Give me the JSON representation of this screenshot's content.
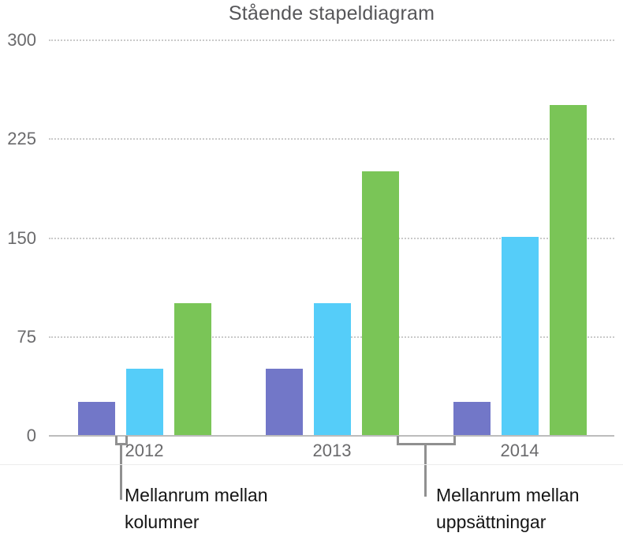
{
  "chart": {
    "title": "Stående stapeldiagram"
  },
  "chart_data": {
    "type": "bar",
    "title": "Stående stapeldiagram",
    "categories": [
      "2012",
      "2013",
      "2014"
    ],
    "series": [
      {
        "color": "#7277C8",
        "values": [
          25,
          50,
          25
        ]
      },
      {
        "color": "#55CDF9",
        "values": [
          50,
          100,
          150
        ]
      },
      {
        "color": "#7AC557",
        "values": [
          100,
          200,
          250
        ]
      }
    ],
    "ylim": [
      0,
      300
    ],
    "y_ticks": [
      300,
      225,
      150,
      75,
      0
    ],
    "xlabel": "",
    "ylabel": "",
    "grid": "horizontal-dotted",
    "legend_position": "none",
    "bar_group_layout": "grouped-3-per-category"
  },
  "annotations": {
    "columns_gap": {
      "line1": "Mellanrum mellan",
      "line2": "kolumner"
    },
    "sets_gap": {
      "line1": "Mellanrum mellan",
      "line2": "uppsättningar"
    }
  },
  "colors": {
    "bar_purple": "#7277C8",
    "bar_cyan": "#55CDF9",
    "bar_green": "#7AC557",
    "gridline": "#cacaca",
    "axis_line": "#bcbcbc",
    "axis_label": "#6a6a6c",
    "title_text": "#565659",
    "callout_line": "#909090",
    "callout_text": "#151515"
  }
}
